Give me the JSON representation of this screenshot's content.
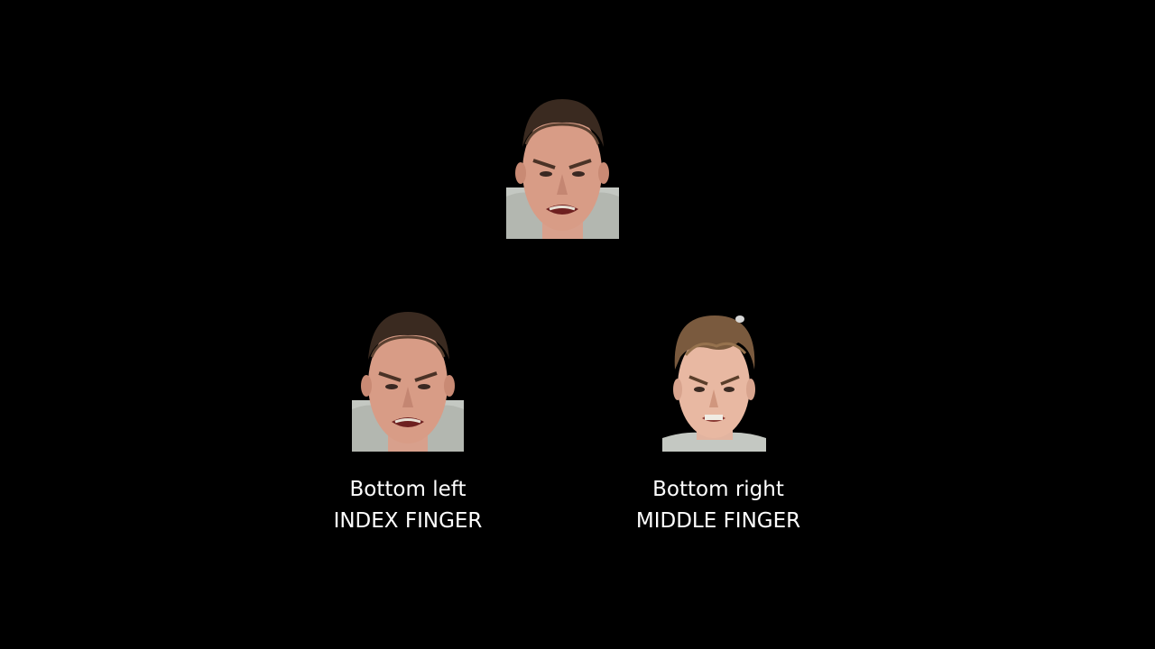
{
  "images": {
    "top": {
      "icon": "angry-face-photo"
    },
    "bottom_left": {
      "icon": "angry-face-photo"
    },
    "bottom_right": {
      "icon": "angry-face-photo"
    }
  },
  "labels": {
    "bottom_left": {
      "position": "Bottom left",
      "finger": "INDEX FINGER"
    },
    "bottom_right": {
      "position": "Bottom right",
      "finger": "MIDDLE FINGER"
    }
  },
  "colors": {
    "background": "#000000",
    "text": "#ffffff"
  }
}
